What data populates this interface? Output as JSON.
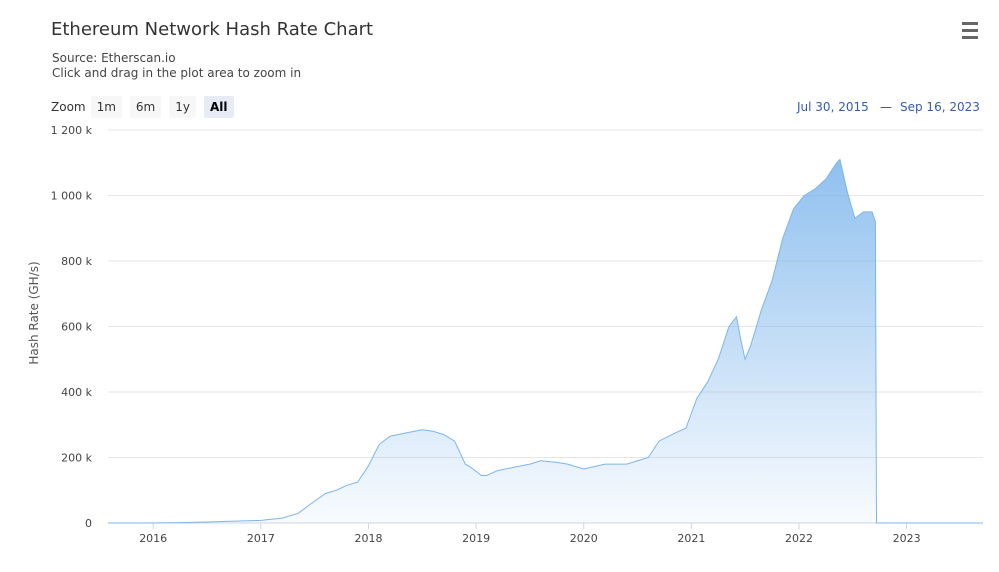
{
  "header": {
    "title": "Ethereum Network Hash Rate Chart",
    "source": "Source: Etherscan.io",
    "hint": "Click and drag in the plot area to zoom in"
  },
  "zoom": {
    "label": "Zoom",
    "buttons": [
      "1m",
      "6m",
      "1y",
      "All"
    ],
    "selected": "All"
  },
  "range": {
    "from": "Jul 30, 2015",
    "dash": "—",
    "to": "Sep 16, 2023"
  },
  "chart_data": {
    "type": "area",
    "title": "Ethereum Network Hash Rate Chart",
    "ylabel": "Hash Rate (GH/s)",
    "xlabel": "",
    "xlim": [
      2015.58,
      2023.71
    ],
    "ylim": [
      0,
      1200000
    ],
    "yticks": [
      0,
      200000,
      400000,
      600000,
      800000,
      1000000,
      1200000
    ],
    "ytick_labels": [
      "0",
      "200 k",
      "400 k",
      "600 k",
      "800 k",
      "1 000 k",
      "1 200 k"
    ],
    "xticks": [
      2016,
      2017,
      2018,
      2019,
      2020,
      2021,
      2022,
      2023
    ],
    "xtick_labels": [
      "2016",
      "2017",
      "2018",
      "2019",
      "2020",
      "2021",
      "2022",
      "2023"
    ],
    "grid": true,
    "series": [
      {
        "color": "#7cb5ec",
        "x": [
          2015.58,
          2015.9,
          2016.2,
          2016.5,
          2016.8,
          2017.0,
          2017.2,
          2017.35,
          2017.45,
          2017.6,
          2017.7,
          2017.8,
          2017.9,
          2018.0,
          2018.1,
          2018.2,
          2018.35,
          2018.5,
          2018.6,
          2018.7,
          2018.8,
          2018.9,
          2018.95,
          2019.05,
          2019.1,
          2019.2,
          2019.35,
          2019.5,
          2019.6,
          2019.75,
          2019.85,
          2020.0,
          2020.2,
          2020.4,
          2020.6,
          2020.7,
          2020.85,
          2020.95,
          2021.05,
          2021.15,
          2021.25,
          2021.35,
          2021.42,
          2021.46,
          2021.5,
          2021.55,
          2021.65,
          2021.75,
          2021.85,
          2021.95,
          2022.05,
          2022.15,
          2022.25,
          2022.35,
          2022.38,
          2022.45,
          2022.52,
          2022.6,
          2022.68,
          2022.71,
          2022.72,
          2022.8,
          2023.0,
          2023.3,
          2023.71
        ],
        "y": [
          0,
          0,
          1000,
          3000,
          6000,
          8000,
          15000,
          30000,
          55000,
          90000,
          100000,
          115000,
          125000,
          175000,
          240000,
          265000,
          275000,
          285000,
          280000,
          270000,
          250000,
          180000,
          170000,
          145000,
          145000,
          160000,
          170000,
          180000,
          190000,
          185000,
          180000,
          165000,
          180000,
          180000,
          200000,
          250000,
          275000,
          290000,
          380000,
          430000,
          500000,
          600000,
          630000,
          560000,
          500000,
          540000,
          650000,
          740000,
          870000,
          960000,
          1000000,
          1020000,
          1050000,
          1100000,
          1110000,
          1010000,
          930000,
          950000,
          950000,
          920000,
          0,
          0,
          0,
          0,
          0
        ]
      }
    ]
  }
}
